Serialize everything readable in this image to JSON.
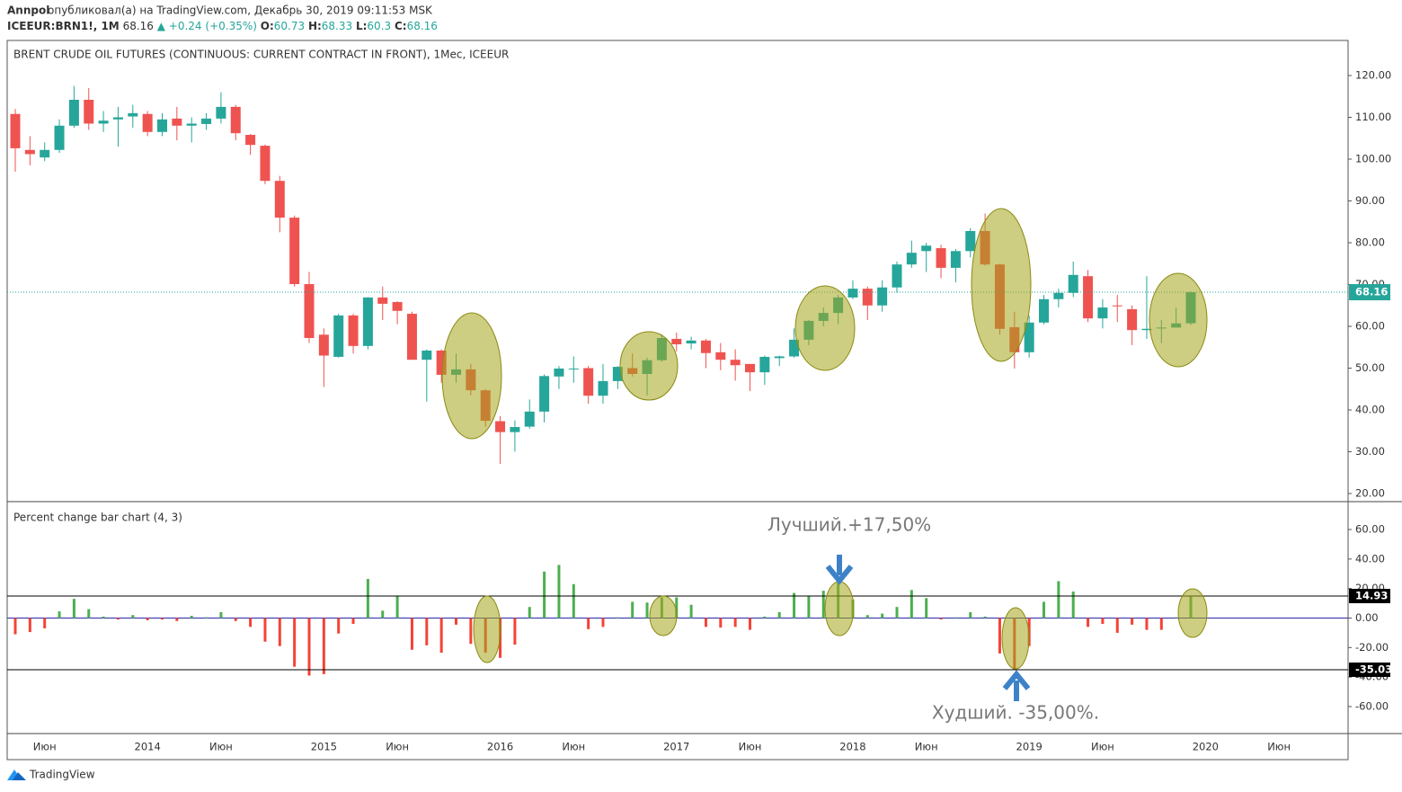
{
  "header": {
    "author": "Annpol",
    "published": "опубликовал(а) на TradingView.com, Декабрь 30, 2019 09:11:53 MSK",
    "symbol": "ICEEUR:BRN1!, 1M",
    "last": 68.16,
    "change": "▲ +0.24 (+0.35%)",
    "ohlc": [
      {
        "label": "O:",
        "value": 60.73
      },
      {
        "label": "H:",
        "value": 68.33
      },
      {
        "label": "L:",
        "value": 60.3
      },
      {
        "label": "C:",
        "value": 68.16
      }
    ]
  },
  "footer": {
    "brand": "TradingView"
  },
  "chart_data": [
    {
      "type": "candlestick",
      "title": "BRENT CRUDE OIL FUTURES (CONTINUOUS: CURRENT CONTRACT IN FRONT), 1Мес, ICEEUR",
      "categories": [
        null,
        null,
        "Июн",
        null,
        null,
        null,
        null,
        null,
        null,
        "2014",
        null,
        null,
        null,
        null,
        "Июн",
        null,
        null,
        null,
        null,
        null,
        null,
        "2015",
        null,
        null,
        null,
        null,
        "Июн",
        null,
        null,
        null,
        null,
        null,
        null,
        "2016",
        null,
        null,
        null,
        null,
        "Июн",
        null,
        null,
        null,
        null,
        null,
        null,
        "2017",
        null,
        null,
        null,
        null,
        "Июн",
        null,
        null,
        null,
        null,
        null,
        null,
        "2018",
        null,
        null,
        null,
        null,
        "Июн",
        null,
        null,
        null,
        null,
        null,
        null,
        "2019",
        null,
        null,
        null,
        null,
        "Июн",
        null,
        null,
        null,
        null,
        null,
        null,
        "2020",
        null,
        null,
        null,
        null,
        "Июн",
        null
      ],
      "open": [
        110.8,
        102.2,
        100.4,
        102.2,
        108,
        114.2,
        108.5,
        109.5,
        110.2,
        110.8,
        106.5,
        109.7,
        108,
        108.4,
        109.7,
        112.5,
        105.8,
        103.2,
        94.8,
        86,
        70.1,
        58,
        52.7,
        62.6,
        55.3,
        66.9,
        65.8,
        63,
        52,
        54.2,
        48.4,
        49.7,
        44.7,
        37.3,
        34.7,
        36,
        39.6,
        48,
        49.7,
        50,
        43.4,
        46.9,
        50,
        48.6,
        51.9,
        57,
        55.9,
        56.6,
        53.8,
        52,
        51,
        49,
        52.4,
        52.8,
        56.8,
        61.3,
        63.2,
        66.9,
        69,
        65,
        69.3,
        74.8,
        78,
        78.7,
        74,
        78,
        82.8,
        74.8,
        59.8,
        53.8,
        60.9,
        66.5,
        68,
        72,
        61.9,
        65,
        64.1,
        59.1,
        59.5,
        59.7,
        60.73,
        null,
        null,
        null,
        null,
        null,
        null,
        null
      ],
      "high": [
        112,
        105.5,
        104,
        109.5,
        117.5,
        117,
        111.5,
        112.5,
        113,
        111.5,
        111,
        112.5,
        110,
        111,
        116,
        113,
        106,
        103.5,
        96,
        86.5,
        73,
        59.5,
        63,
        63,
        67,
        69.5,
        66,
        63.5,
        54.5,
        54.5,
        53.5,
        51,
        45,
        38.5,
        37.5,
        42.5,
        48.5,
        50.5,
        52.8,
        50.5,
        51,
        50.5,
        53.5,
        52.5,
        58,
        58.5,
        57.5,
        57,
        56,
        54.5,
        51,
        53,
        53,
        59.5,
        61.5,
        64.5,
        67.5,
        71,
        69.5,
        71,
        75.5,
        80.5,
        80,
        79.5,
        78.5,
        83.5,
        87,
        75,
        63.5,
        62.5,
        67.5,
        69,
        75.5,
        73.5,
        66.5,
        67.5,
        65,
        72,
        61.5,
        64.5,
        68.33,
        null,
        null,
        null,
        null,
        null,
        null,
        null
      ],
      "low": [
        97,
        98.5,
        99.5,
        101.5,
        107.5,
        107,
        106.5,
        103,
        107.5,
        105.5,
        105.5,
        104.5,
        104,
        107,
        108.5,
        104.5,
        101,
        94,
        82.5,
        69.5,
        56,
        45.5,
        52.5,
        53.5,
        54.5,
        61.5,
        60.5,
        52,
        42,
        46.5,
        46.5,
        43.5,
        36,
        27.1,
        30,
        35.5,
        37,
        45,
        46.5,
        41.5,
        41.5,
        45,
        48,
        43.5,
        51.5,
        54,
        54.5,
        50,
        49.5,
        47,
        44.5,
        46,
        50.5,
        52.5,
        55.5,
        60,
        60.5,
        66.5,
        61.5,
        63.5,
        68,
        74,
        73,
        71.5,
        70.5,
        76.5,
        74.5,
        58,
        49.9,
        52.5,
        60.5,
        64.5,
        67,
        61,
        59.5,
        61,
        55.5,
        57,
        56,
        60,
        60.3,
        null,
        null,
        null,
        null,
        null,
        null,
        null
      ],
      "close": [
        102.6,
        101.2,
        102.2,
        108,
        114.2,
        108.5,
        109.2,
        110,
        111,
        106.5,
        109.5,
        108,
        108.5,
        109.7,
        112.5,
        106.2,
        103.4,
        94.8,
        86,
        70.1,
        57.2,
        53,
        62.6,
        55.3,
        66.9,
        65.4,
        63.7,
        52,
        54.2,
        48.4,
        49.7,
        44.7,
        37.4,
        34.7,
        35.9,
        39.6,
        48.1,
        49.9,
        49.9,
        43.4,
        46.9,
        50.3,
        48.6,
        51.9,
        57.2,
        55.7,
        56.6,
        53.6,
        52,
        50.7,
        49,
        52.7,
        52.8,
        56.8,
        61.3,
        63.2,
        66.9,
        69,
        65,
        69.3,
        74.8,
        77.6,
        79.3,
        74,
        78,
        82.8,
        74.8,
        59.4,
        53.8,
        60.9,
        66.5,
        68,
        72.3,
        61.9,
        64.5,
        64.8,
        59.1,
        59.4,
        59.7,
        60.7,
        68.16,
        null,
        null,
        null,
        null,
        null,
        null,
        null
      ],
      "up_color": "#26a69a",
      "down_color": "#ef5350",
      "last_price": 68.16,
      "ylim": [
        18.06,
        128.39
      ],
      "yticks": [
        {
          "value": 20,
          "label": "20.00"
        },
        {
          "value": 30,
          "label": "30.00"
        },
        {
          "value": 40,
          "label": "40.00"
        },
        {
          "value": 50,
          "label": "50.00"
        },
        {
          "value": 60,
          "label": "60.00"
        },
        {
          "value": 70,
          "label": "70.00"
        },
        {
          "value": 80,
          "label": "80.00"
        },
        {
          "value": 90,
          "label": "90.00"
        },
        {
          "value": 100,
          "label": "100.00"
        },
        {
          "value": 110,
          "label": "110.00"
        },
        {
          "value": 120,
          "label": "120.00"
        }
      ]
    },
    {
      "type": "bar",
      "title": "Percent change bar chart (4, 3)",
      "values": [
        -11,
        -9.5,
        -7,
        4.5,
        13,
        6,
        1,
        -1,
        2,
        -1.5,
        -1,
        -2,
        1.5,
        0.5,
        4,
        -2,
        -6,
        -16,
        -19,
        -33,
        -39,
        -38,
        -10.5,
        -4,
        26.5,
        5,
        15,
        -21.5,
        -18.5,
        -23.5,
        -4.5,
        -17.5,
        -23.5,
        -27,
        -18,
        7.5,
        31.5,
        36,
        23,
        -7.5,
        -6,
        0.5,
        11,
        10.5,
        14,
        14,
        9,
        -6,
        -6.5,
        -6,
        -8,
        1,
        4,
        17,
        15,
        18.5,
        25,
        12.5,
        2,
        3,
        7.5,
        19,
        13.5,
        -1,
        0.5,
        4,
        1,
        -24,
        -35,
        -19,
        11,
        25,
        18,
        -6,
        -4,
        -10,
        -4.5,
        -8,
        -8,
        0.5,
        14.5,
        null,
        null,
        null,
        null,
        null,
        null,
        null
      ],
      "up_color": "#4caf50",
      "down_color": "#f44336",
      "hlines": [
        14.93,
        -35.03
      ],
      "annotations": [
        "Лучший.+17,50%",
        "Худший. -35,00%."
      ],
      "ylim": [
        -78.3,
        78.9
      ],
      "yticks": [
        {
          "value": 60,
          "label": "60.00"
        },
        {
          "value": 40,
          "label": "40.00"
        },
        {
          "value": 20,
          "label": "20.00"
        },
        {
          "value": 0,
          "label": "0.00"
        },
        {
          "value": -20,
          "label": "-20.00"
        },
        {
          "value": -40,
          "label": "-40.00"
        },
        {
          "value": -60,
          "label": "-60.00"
        }
      ]
    }
  ]
}
